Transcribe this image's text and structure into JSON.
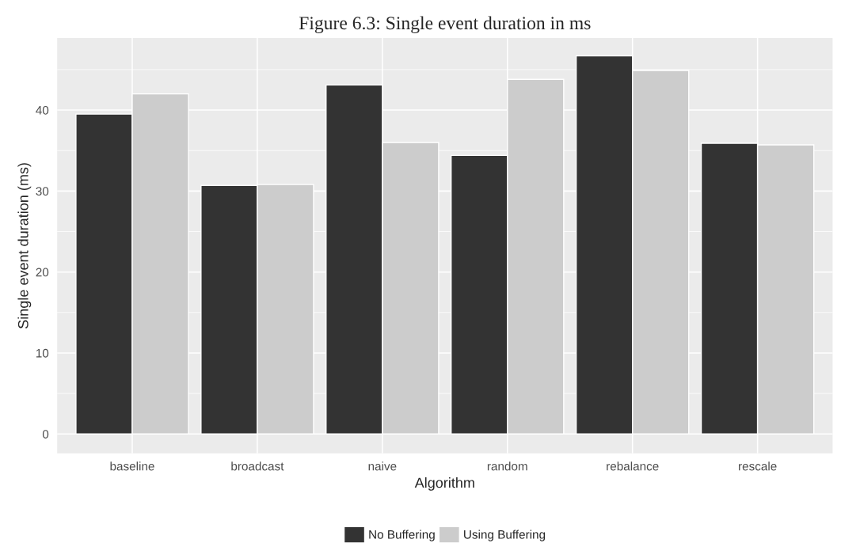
{
  "chart_data": {
    "type": "bar",
    "title": "Figure 6.3: Single event duration in ms",
    "xlabel": "Algorithm",
    "ylabel": "Single event duration (ms)",
    "categories": [
      "baseline",
      "broadcast",
      "naive",
      "random",
      "rebalance",
      "rescale"
    ],
    "series": [
      {
        "name": "No Buffering",
        "color": "#333333",
        "values": [
          39.5,
          30.7,
          43.1,
          34.4,
          46.7,
          35.9
        ]
      },
      {
        "name": "Using Buffering",
        "color": "#cccccc",
        "values": [
          42.0,
          30.8,
          36.0,
          43.8,
          44.9,
          35.7
        ]
      }
    ],
    "ylim": [
      -2.4,
      48.9
    ],
    "yticks": [
      0,
      10,
      20,
      30,
      40
    ],
    "grid": true,
    "legend": "bottom"
  }
}
